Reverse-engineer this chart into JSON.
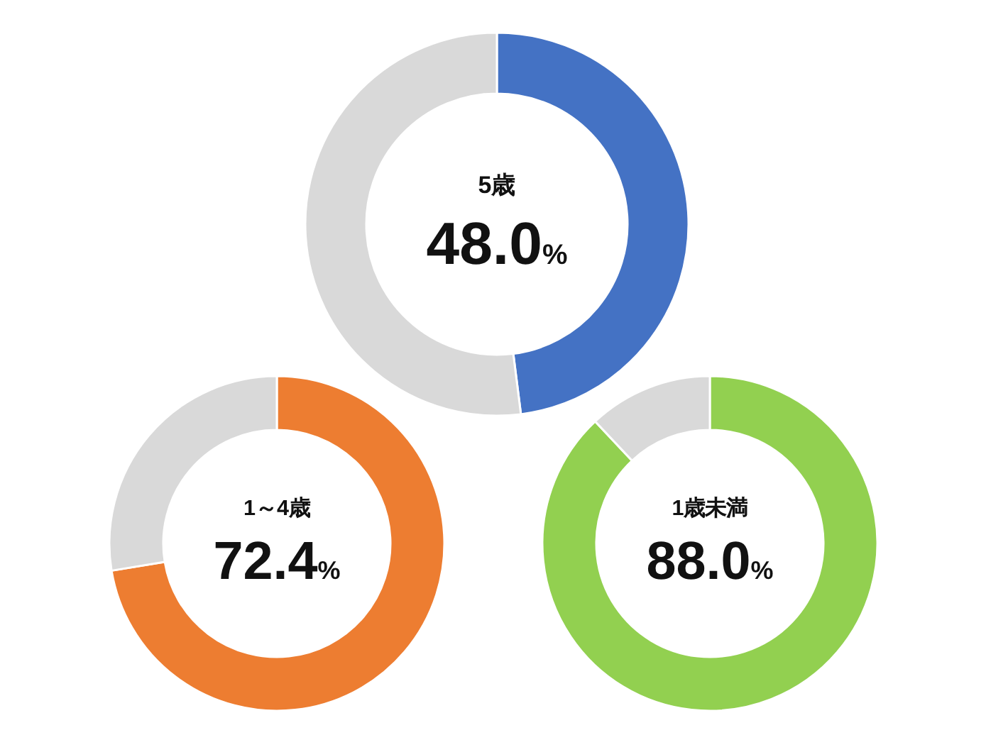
{
  "chart_data": [
    {
      "type": "donut",
      "title": "5歳",
      "categories": [
        null,
        null
      ],
      "values": [
        48.0,
        52.0
      ],
      "colors": [
        "#4472c4",
        "#d9d9d9"
      ],
      "value_labels": [
        "48.0%",
        null
      ]
    },
    {
      "type": "donut",
      "title": "1～4歳",
      "categories": [
        null,
        null
      ],
      "values": [
        72.4,
        27.6
      ],
      "colors": [
        "#ed7d31",
        "#d9d9d9"
      ],
      "value_labels": [
        "72.4%",
        null
      ]
    },
    {
      "type": "donut",
      "title": "1歳未満",
      "categories": [
        null,
        null
      ],
      "values": [
        88.0,
        12.0
      ],
      "colors": [
        "#92d050",
        "#d9d9d9"
      ],
      "value_labels": [
        "88.0%",
        null
      ]
    }
  ]
}
